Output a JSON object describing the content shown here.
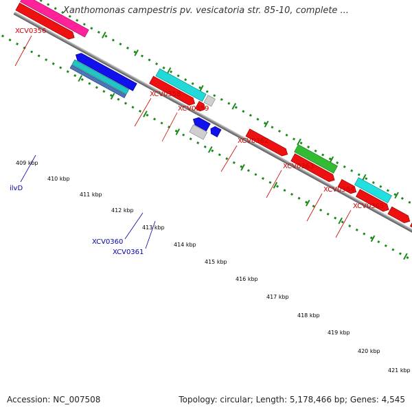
{
  "title": "Xanthomonas campestris pv. vesicatoria str. 85-10, complete ...",
  "footer": {
    "accession": "Accession: NC_007508",
    "summary": "Topology: circular; Length: 5,178,466 bp; Genes: 4,545"
  },
  "colors": {
    "backbone": "#8c8c8c",
    "dots": "#1a8a1a",
    "forward_label": "#cc0000",
    "reverse_label": "#0000aa"
  },
  "scale": {
    "ticks": [
      {
        "label": "409 kbp"
      },
      {
        "label": "410 kbp"
      },
      {
        "label": "411 kbp"
      },
      {
        "label": "412 kbp"
      },
      {
        "label": "413 kbp"
      },
      {
        "label": "414 kbp"
      },
      {
        "label": "415 kbp"
      },
      {
        "label": "416 kbp"
      },
      {
        "label": "417 kbp"
      },
      {
        "label": "418 kbp"
      },
      {
        "label": "419 kbp"
      },
      {
        "label": "420 kbp"
      },
      {
        "label": "421 kbp"
      }
    ]
  },
  "labels": {
    "forward": [
      "XCV0356",
      "XCV0358",
      "XCV0359",
      "XCV0362",
      "XCV0363",
      "XCV0364",
      "XCV0365"
    ],
    "reverse": [
      "ilvD",
      "XCV0360",
      "XCV0361"
    ]
  }
}
